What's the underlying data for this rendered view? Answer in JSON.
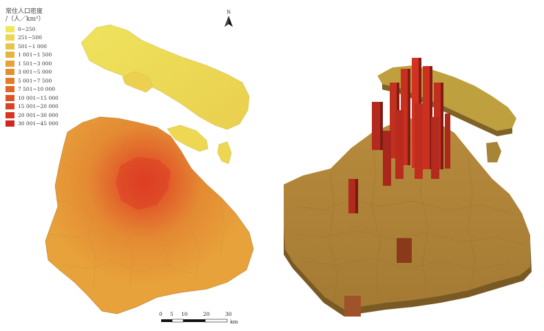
{
  "legend": {
    "title_line1": "常住人口密度",
    "title_line2": "/（人／km²）",
    "items": [
      {
        "label": "0~250",
        "color": "#f2e65a"
      },
      {
        "label": "251~500",
        "color": "#eed552"
      },
      {
        "label": "501~1 000",
        "color": "#e9c54a"
      },
      {
        "label": "1 001~1 500",
        "color": "#e6b43f"
      },
      {
        "label": "1 501~3 000",
        "color": "#e5a236"
      },
      {
        "label": "3 001~5 000",
        "color": "#e38f2f"
      },
      {
        "label": "5 001~7 500",
        "color": "#e27c2b"
      },
      {
        "label": "7 501~10 000",
        "color": "#e06628"
      },
      {
        "label": "10 001~15 000",
        "color": "#de5326"
      },
      {
        "label": "15 001~20 000",
        "color": "#db4224"
      },
      {
        "label": "20 001~30 000",
        "color": "#d83322"
      },
      {
        "label": "30 001~45 000",
        "color": "#d42420"
      }
    ]
  },
  "north_arrow": {
    "label": "N"
  },
  "scale_bar": {
    "ticks": [
      "0",
      "5",
      "10",
      "20",
      "30"
    ],
    "unit": "km"
  }
}
